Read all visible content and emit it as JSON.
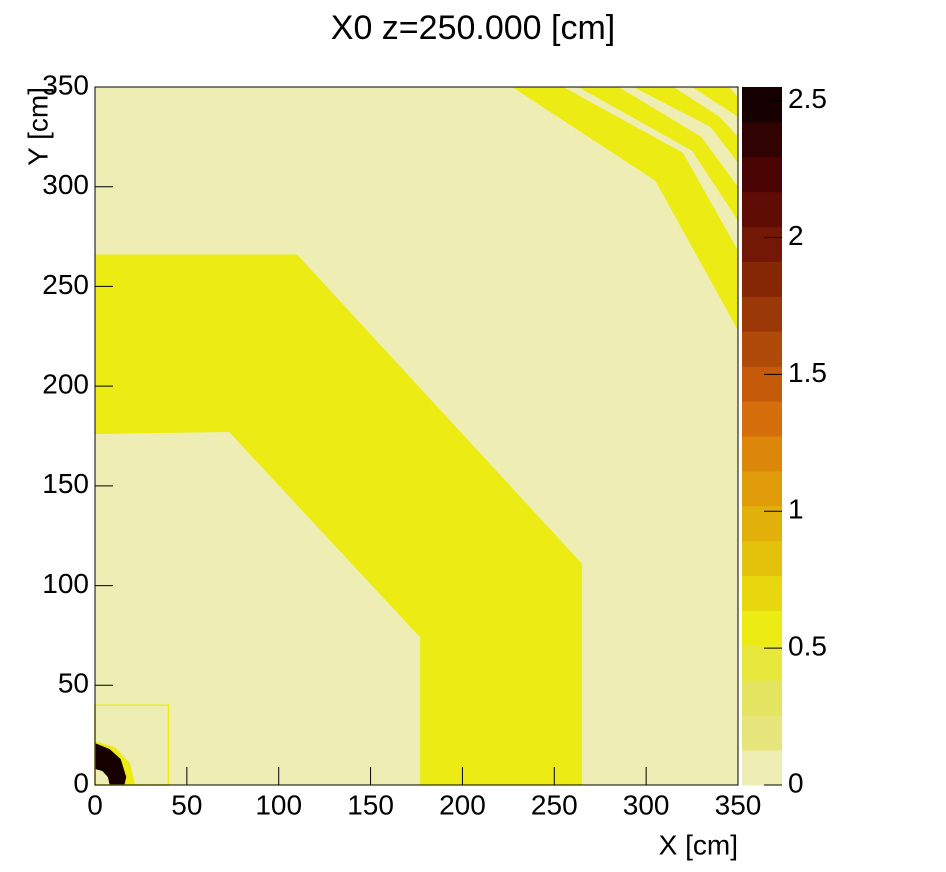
{
  "chart_data": {
    "type": "contour-map",
    "title": "X0 z=250.000 [cm]",
    "x_label": "X [cm]",
    "y_label": "Y [cm]",
    "xlim": [
      0,
      350
    ],
    "xticks": [
      0,
      50,
      100,
      150,
      200,
      250,
      300,
      350
    ],
    "ylim": [
      0,
      350
    ],
    "yticks": [
      0,
      50,
      100,
      150,
      200,
      250,
      300,
      350
    ],
    "zlim": [
      0,
      2.55
    ],
    "zticks": [
      0,
      0.5,
      1,
      1.5,
      2,
      2.5
    ],
    "colorscale": [
      "#eeeeb4",
      "#e6e67c",
      "#e4e560",
      "#e8e83c",
      "#ecec14",
      "#e9d70e",
      "#e4c20c",
      "#e2b00a",
      "#e09c0a",
      "#dc860a",
      "#d66e0c",
      "#c45a0a",
      "#b04a08",
      "#9a3808",
      "#862806",
      "#721805",
      "#5e0c04",
      "#4a0404",
      "#300202",
      "#160000"
    ],
    "regions": [
      {
        "value": 0.05,
        "points": [
          [
            0,
            0
          ],
          [
            350,
            0
          ],
          [
            350,
            350
          ],
          [
            0,
            350
          ]
        ]
      },
      {
        "value": 0.6,
        "points": [
          [
            0,
            176
          ],
          [
            73,
            177
          ],
          [
            177,
            74
          ],
          [
            177,
            0
          ],
          [
            265,
            0
          ],
          [
            265,
            111
          ],
          [
            110,
            266
          ],
          [
            0,
            266
          ]
        ]
      },
      {
        "value": 0.6,
        "points": [
          [
            227,
            350
          ],
          [
            255,
            350
          ],
          [
            320,
            317
          ],
          [
            350,
            268
          ],
          [
            350,
            228
          ],
          [
            305,
            303
          ]
        ]
      },
      {
        "value": 0.6,
        "points": [
          [
            263,
            350
          ],
          [
            285,
            350
          ],
          [
            330,
            325
          ],
          [
            350,
            300
          ],
          [
            350,
            283
          ],
          [
            325,
            318
          ]
        ]
      },
      {
        "value": 0.6,
        "points": [
          [
            293,
            350
          ],
          [
            315,
            350
          ],
          [
            340,
            335
          ],
          [
            350,
            325
          ],
          [
            350,
            312
          ],
          [
            335,
            330
          ]
        ]
      },
      {
        "value": 0.6,
        "points": [
          [
            325,
            350
          ],
          [
            345,
            350
          ],
          [
            350,
            345
          ],
          [
            350,
            335
          ]
        ]
      },
      {
        "value": 0.6,
        "points": [
          [
            0,
            22
          ],
          [
            11,
            19
          ],
          [
            19,
            11
          ],
          [
            22,
            0
          ],
          [
            14,
            0
          ],
          [
            12,
            7
          ],
          [
            7,
            12
          ],
          [
            0,
            14
          ]
        ]
      },
      {
        "value": 2.5,
        "points": [
          [
            0,
            21
          ],
          [
            8,
            18
          ],
          [
            14,
            13
          ],
          [
            17,
            4
          ],
          [
            16,
            0
          ],
          [
            8,
            0
          ],
          [
            7,
            4
          ],
          [
            4,
            7
          ],
          [
            0,
            8
          ]
        ]
      },
      {
        "value": 0.6,
        "outline": true,
        "points": [
          [
            0,
            0
          ],
          [
            40,
            0
          ],
          [
            40,
            40
          ],
          [
            0,
            40
          ]
        ]
      }
    ]
  }
}
